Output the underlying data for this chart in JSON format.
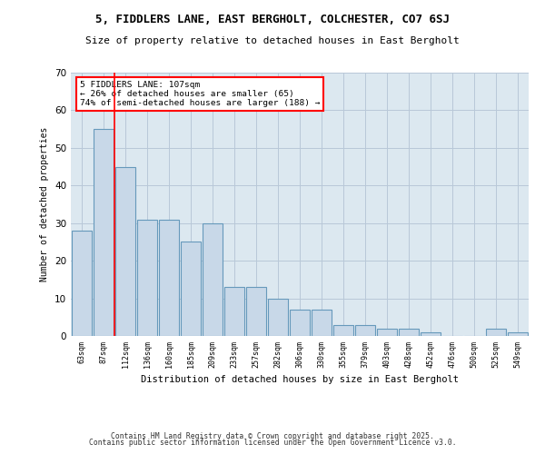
{
  "title1": "5, FIDDLERS LANE, EAST BERGHOLT, COLCHESTER, CO7 6SJ",
  "title2": "Size of property relative to detached houses in East Bergholt",
  "xlabel": "Distribution of detached houses by size in East Bergholt",
  "ylabel": "Number of detached properties",
  "categories": [
    "63sqm",
    "87sqm",
    "112sqm",
    "136sqm",
    "160sqm",
    "185sqm",
    "209sqm",
    "233sqm",
    "257sqm",
    "282sqm",
    "306sqm",
    "330sqm",
    "355sqm",
    "379sqm",
    "403sqm",
    "428sqm",
    "452sqm",
    "476sqm",
    "500sqm",
    "525sqm",
    "549sqm"
  ],
  "values": [
    28,
    55,
    45,
    31,
    31,
    25,
    30,
    13,
    13,
    10,
    7,
    7,
    3,
    3,
    2,
    2,
    1,
    0,
    0,
    2,
    1
  ],
  "bar_color": "#c8d8e8",
  "bar_edge_color": "#6699bb",
  "vline_x": 1.5,
  "vline_color": "red",
  "annotation_text": "5 FIDDLERS LANE: 107sqm\n← 26% of detached houses are smaller (65)\n74% of semi-detached houses are larger (188) →",
  "annotation_box_color": "white",
  "annotation_box_edge": "red",
  "ylim": [
    0,
    70
  ],
  "yticks": [
    0,
    10,
    20,
    30,
    40,
    50,
    60,
    70
  ],
  "grid_color": "#b8c8d8",
  "background_color": "#dce8f0",
  "footer1": "Contains HM Land Registry data © Crown copyright and database right 2025.",
  "footer2": "Contains public sector information licensed under the Open Government Licence v3.0."
}
